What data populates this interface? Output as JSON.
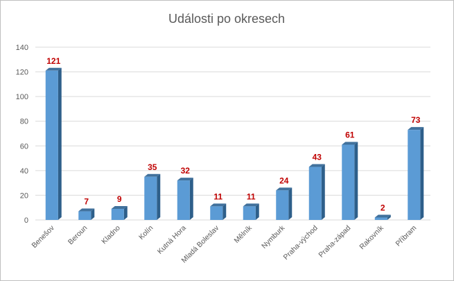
{
  "chart_data": {
    "type": "bar",
    "title": "Události po okresech",
    "xlabel": "",
    "ylabel": "",
    "ylim": [
      0,
      140
    ],
    "yticks": [
      0,
      20,
      40,
      60,
      80,
      100,
      120,
      140
    ],
    "grid": true,
    "legend": "none",
    "categories": [
      "Benešov",
      "Beroun",
      "Kladno",
      "Kolín",
      "Kutná Hora",
      "Mladá Boleslav",
      "Mělník",
      "Nymburk",
      "Praha-východ",
      "Praha-západ",
      "Rakovník",
      "Příbram"
    ],
    "values": [
      121,
      7,
      9,
      35,
      32,
      11,
      11,
      24,
      43,
      61,
      2,
      73
    ],
    "data_labels": [
      "121",
      "7",
      "9",
      "35",
      "32",
      "11",
      "11",
      "24",
      "43",
      "61",
      "2",
      "73"
    ],
    "colors": {
      "bar_front": "#5b9bd5",
      "bar_side": "#2e5f8a",
      "bar_top": "#41719c",
      "label": "#c00000",
      "grid": "#d9d9d9",
      "text": "#595959"
    }
  }
}
